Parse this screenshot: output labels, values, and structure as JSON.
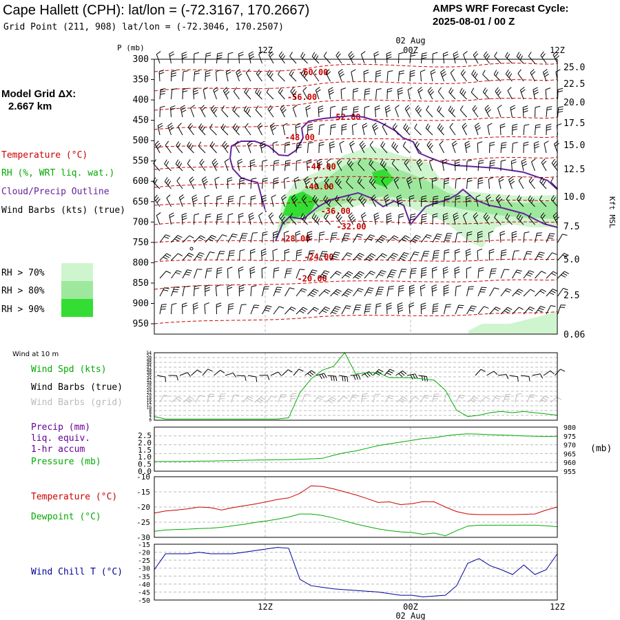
{
  "header": {
    "title": "Cape Hallett (CPH):  lat/lon = (-72.3167, 170.2667)",
    "grid_point": "Grid Point (211, 908) lat/lon = (-72.3046, 170.2507)",
    "cycle_label": "AMPS WRF Forecast Cycle:",
    "cycle_value": "2025-08-01 / 00  Z",
    "grid_label": "Model Grid ΔX:",
    "grid_value": "2.667 km"
  },
  "colors": {
    "temperature": "#cc0000",
    "rh": "#00aa00",
    "cloud": "#662299",
    "wind": "#000000",
    "grid_wind": "#bbbbbb",
    "precip": "#660099",
    "dewpoint": "#00aa00",
    "windchill": "#000099",
    "rh70": "#cff5cf",
    "rh80": "#9ee89e",
    "rh90": "#33dd33"
  },
  "time_axis": {
    "top_labels": [
      "12Z",
      "00Z",
      "12Z"
    ],
    "date_label": "02 Aug",
    "bottom_labels": [
      "12Z",
      "00Z",
      "12Z"
    ]
  },
  "legend": {
    "temperature": "Temperature (°C)",
    "rh": "RH (%, WRT liq. wat.)",
    "cloud": "Cloud/Precip Outline",
    "wind": "Wind Barbs (kts) (true)",
    "rh70": "RH > 70%",
    "rh80": "RH > 80%",
    "rh90": "RH > 90%"
  },
  "panel_labels": {
    "wind10m": "Wind at 10 m",
    "wind_spd": "Wind Spd (kts)",
    "wind_barbs_true": "Wind Barbs (true)",
    "wind_barbs_grid": "Wind Barbs (grid)",
    "precip1": "Precip (mm)",
    "precip2": "liq. equiv.",
    "precip3": "1-hr accum",
    "pressure": "Pressure (mb)",
    "pressure_unit": "(mb)",
    "temperature": "Temperature (°C)",
    "dewpoint": "Dewpoint (°C)",
    "windchill": "Wind Chill T (°C)"
  },
  "chart_data": [
    {
      "type": "heatmap",
      "name": "time-height cross section",
      "x_hours": [
        0,
        36
      ],
      "y_label": "P (mb)",
      "y_pressure_ticks": [
        300,
        350,
        400,
        450,
        500,
        550,
        600,
        650,
        700,
        750,
        800,
        850,
        900,
        950
      ],
      "right_axis_label": "Kft MSL",
      "right_axis_ticks": [
        "25.0",
        "22.5",
        "20.0",
        "17.5",
        "15.0",
        "12.5",
        "10.0",
        "7.5",
        "5.0",
        "2.5",
        "0.06"
      ],
      "temperature_labels": [
        {
          "text": "-60.00",
          "hour": 14.2,
          "p": 332
        },
        {
          "text": "-56.00",
          "hour": 13.2,
          "p": 393
        },
        {
          "text": "-52.00",
          "hour": 17.1,
          "p": 442
        },
        {
          "text": "-48.00",
          "hour": 13.0,
          "p": 492
        },
        {
          "text": "-44.00",
          "hour": 14.9,
          "p": 564
        },
        {
          "text": "-40.00",
          "hour": 14.7,
          "p": 613
        },
        {
          "text": "-36.00",
          "hour": 16.2,
          "p": 673
        },
        {
          "text": "-32.00",
          "hour": 17.6,
          "p": 711
        },
        {
          "text": "-28.00",
          "hour": 12.6,
          "p": 741
        },
        {
          "text": "-24.00",
          "hour": 14.7,
          "p": 786
        },
        {
          "text": "-20.00",
          "hour": 14.1,
          "p": 839
        }
      ]
    },
    {
      "type": "line",
      "name": "10 m wind speed",
      "y_ticks": [
        0,
        2,
        4,
        6,
        8,
        10,
        12,
        14,
        16,
        18,
        20,
        22,
        24,
        26,
        28,
        30,
        32,
        34,
        36,
        38,
        40,
        42,
        44,
        46,
        48,
        50,
        52,
        54
      ],
      "ylim": [
        0,
        54
      ],
      "x_hours": [
        0,
        1,
        2,
        3,
        4,
        5,
        6,
        7,
        8,
        9,
        10,
        11,
        12,
        13,
        14,
        15,
        16,
        17,
        18,
        19,
        20,
        21,
        22,
        23,
        24,
        25,
        26,
        27,
        28,
        29,
        30,
        31,
        32,
        33,
        34,
        35,
        36
      ],
      "series": [
        {
          "values": [
            3,
            1,
            1,
            1,
            1,
            1,
            1,
            1,
            1,
            1,
            1,
            1,
            2,
            22,
            33,
            40,
            43,
            54,
            37,
            38,
            38,
            34,
            34,
            34,
            33,
            32,
            24,
            8,
            3,
            4,
            6,
            7,
            6,
            7,
            6,
            5,
            4
          ]
        }
      ]
    },
    {
      "type": "line",
      "name": "precip and pressure",
      "left_ticks": [
        "0.0",
        "0.5",
        "1.0",
        "1.5",
        "2.0",
        "2.5"
      ],
      "right_ticks": [
        "955",
        "960",
        "965",
        "970",
        "975",
        "980"
      ],
      "precip_ylim": [
        0,
        2.5
      ],
      "pressure_ylim": [
        955,
        980
      ],
      "x_hours": [
        0,
        1,
        2,
        3,
        4,
        5,
        6,
        7,
        8,
        9,
        10,
        11,
        12,
        13,
        14,
        15,
        16,
        17,
        18,
        19,
        20,
        21,
        22,
        23,
        24,
        25,
        26,
        27,
        28,
        29,
        30,
        31,
        32,
        33,
        34,
        35,
        36
      ],
      "series": [
        {
          "name": "Pressure",
          "values": [
            960.5,
            960.5,
            960.5,
            960.6,
            960.7,
            960.8,
            960.9,
            961.0,
            961.2,
            961.3,
            961.4,
            961.5,
            961.6,
            961.8,
            962.0,
            962.3,
            964.0,
            965.5,
            966.5,
            968.0,
            969.5,
            970.5,
            971.5,
            972.5,
            973.5,
            974.0,
            975.0,
            975.8,
            976.2,
            976.0,
            975.7,
            975.5,
            975.3,
            975.0,
            974.8,
            974.7,
            974.8
          ]
        },
        {
          "name": "Precip",
          "values": [
            0,
            0,
            0,
            0,
            0,
            0,
            0,
            0,
            0,
            0,
            0,
            0,
            0,
            0,
            0,
            0,
            0,
            0,
            0,
            0,
            0,
            0,
            0,
            0,
            0,
            0,
            0,
            0,
            0,
            0,
            0,
            0,
            0,
            0,
            0,
            0,
            0
          ]
        }
      ]
    },
    {
      "type": "line",
      "name": "temperature and dewpoint",
      "y_ticks": [
        -30,
        -25,
        -20,
        -15,
        -10
      ],
      "ylim": [
        -30,
        -10
      ],
      "x_hours": [
        0,
        1,
        2,
        3,
        4,
        5,
        6,
        7,
        8,
        9,
        10,
        11,
        12,
        13,
        14,
        15,
        16,
        17,
        18,
        19,
        20,
        21,
        22,
        23,
        24,
        25,
        26,
        27,
        28,
        29,
        30,
        31,
        32,
        33,
        34,
        35,
        36
      ],
      "series": [
        {
          "name": "Temperature",
          "values": [
            -22.0,
            -21.3,
            -21.0,
            -20.6,
            -20.0,
            -20.2,
            -21.0,
            -20.2,
            -19.6,
            -19.0,
            -18.3,
            -17.5,
            -17.0,
            -15.5,
            -13.0,
            -13.2,
            -14.0,
            -15.0,
            -16.0,
            -17.2,
            -18.5,
            -18.3,
            -19.2,
            -18.9,
            -18.2,
            -18.3,
            -20.0,
            -21.5,
            -22.3,
            -22.5,
            -22.5,
            -22.5,
            -22.5,
            -22.4,
            -22.3,
            -21.0,
            -20.0
          ]
        },
        {
          "name": "Dewpoint",
          "values": [
            -28.0,
            -27.6,
            -27.4,
            -27.3,
            -27.1,
            -27.0,
            -26.7,
            -26.2,
            -25.7,
            -25.1,
            -24.6,
            -24.0,
            -23.3,
            -22.3,
            -22.3,
            -22.8,
            -23.6,
            -24.6,
            -25.6,
            -26.4,
            -27.2,
            -27.8,
            -28.2,
            -28.4,
            -29.0,
            -28.6,
            -29.5,
            -27.8,
            -26.3,
            -26.0,
            -26.0,
            -26.0,
            -26.0,
            -26.0,
            -26.0,
            -26.2,
            -26.5
          ]
        }
      ]
    },
    {
      "type": "line",
      "name": "wind chill",
      "y_ticks": [
        -50,
        -45,
        -40,
        -35,
        -30,
        -25,
        -20,
        -15
      ],
      "ylim": [
        -50,
        -15
      ],
      "x_hours": [
        0,
        1,
        2,
        3,
        4,
        5,
        6,
        7,
        8,
        9,
        10,
        11,
        12,
        13,
        14,
        15,
        16,
        17,
        18,
        19,
        20,
        21,
        22,
        23,
        24,
        25,
        26,
        27,
        28,
        29,
        30,
        31,
        32,
        33,
        34,
        35,
        36
      ],
      "series": [
        {
          "name": "Wind Chill T",
          "values": [
            -31,
            -21,
            -21,
            -21,
            -20,
            -21,
            -21,
            -21,
            -20,
            -19,
            -18,
            -17,
            -17.5,
            -37,
            -41,
            -42,
            -43,
            -43.5,
            -44,
            -44.5,
            -45,
            -46,
            -47,
            -47,
            -48,
            -47.5,
            -47,
            -41,
            -27,
            -24,
            -28.5,
            -31,
            -34,
            -28,
            -34,
            -31,
            -21
          ]
        }
      ]
    }
  ]
}
